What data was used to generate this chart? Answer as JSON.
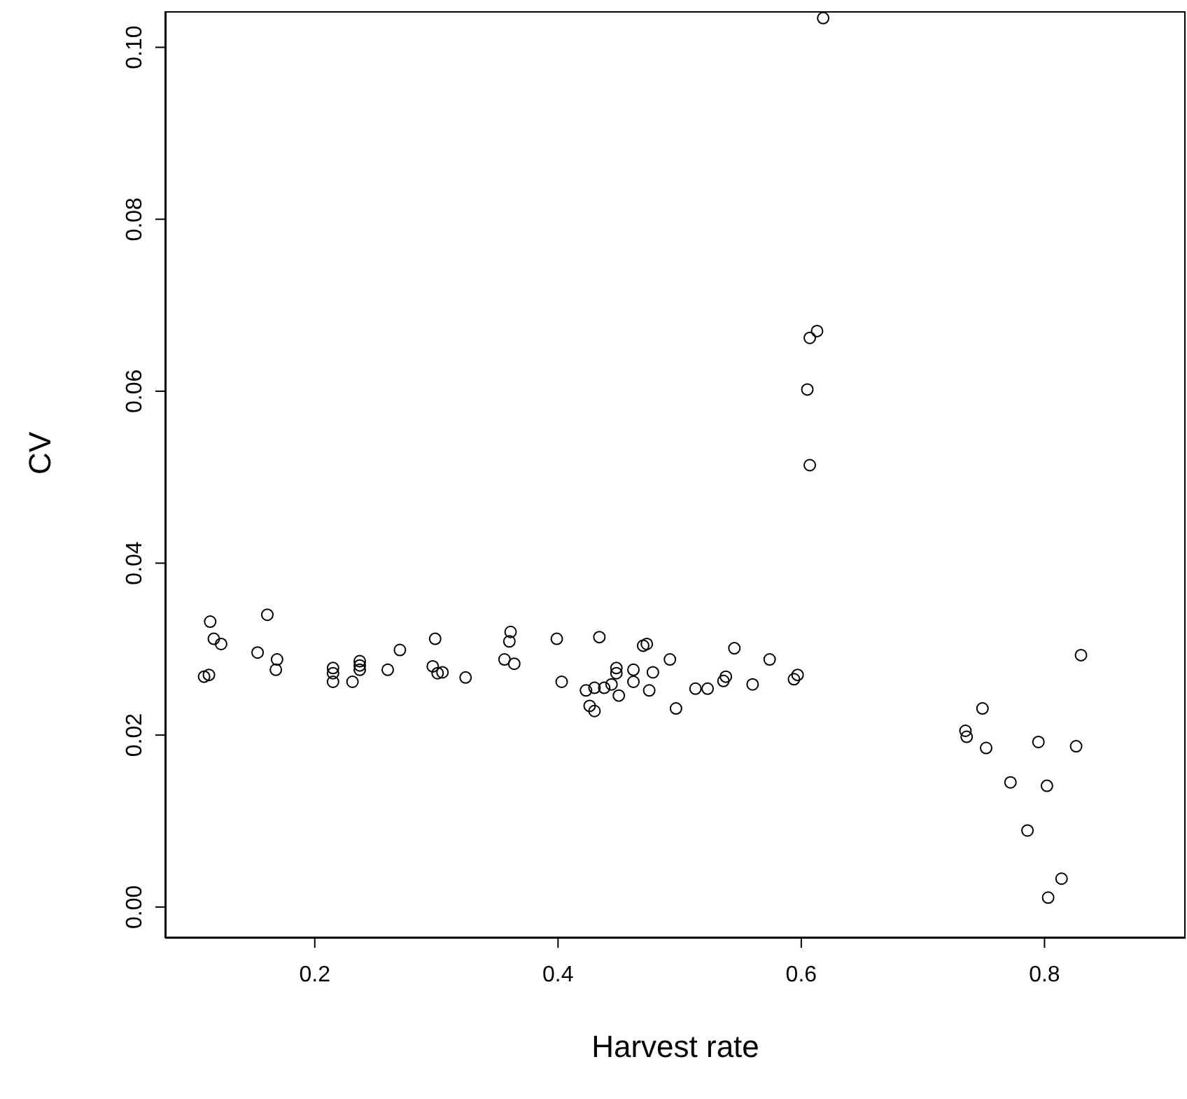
{
  "chart_data": {
    "type": "scatter",
    "xlabel": "Harvest rate",
    "ylabel": "CV",
    "marker": "circle",
    "grid": false,
    "legend": false,
    "xlim": [
      0.077,
      0.916
    ],
    "ylim": [
      -0.0036,
      0.1042
    ],
    "xticks": [
      {
        "value": 0.2,
        "label": "0.2"
      },
      {
        "value": 0.4,
        "label": "0.4"
      },
      {
        "value": 0.6,
        "label": "0.6"
      },
      {
        "value": 0.8,
        "label": "0.8"
      }
    ],
    "yticks": [
      {
        "value": 0,
        "label": "0.00"
      },
      {
        "value": 0.02,
        "label": "0.02"
      },
      {
        "value": 0.04,
        "label": "0.04"
      },
      {
        "value": 0.06,
        "label": "0.06"
      },
      {
        "value": 0.08,
        "label": "0.08"
      },
      {
        "value": 0.1,
        "label": "0.10"
      }
    ],
    "series": [
      {
        "color": "#000000",
        "x": [
          0.109,
          0.113,
          0.114,
          0.117,
          0.123,
          0.153,
          0.161,
          0.169,
          0.168,
          0.215,
          0.215,
          0.215,
          0.231,
          0.237,
          0.237,
          0.237,
          0.26,
          0.27,
          0.297,
          0.299,
          0.301,
          0.305,
          0.324,
          0.356,
          0.36,
          0.361,
          0.364,
          0.399,
          0.403,
          0.423,
          0.426,
          0.43,
          0.43,
          0.438,
          0.434,
          0.444,
          0.448,
          0.448,
          0.45,
          0.462,
          0.462,
          0.47,
          0.473,
          0.475,
          0.478,
          0.492,
          0.497,
          0.513,
          0.523,
          0.536,
          0.538,
          0.545,
          0.56,
          0.574,
          0.594,
          0.597,
          0.605,
          0.607,
          0.607,
          0.613,
          0.618,
          0.735,
          0.736,
          0.749,
          0.752,
          0.772,
          0.786,
          0.795,
          0.802,
          0.803,
          0.814,
          0.826,
          0.83
        ],
        "values": [
          0.0268,
          0.027,
          0.0332,
          0.0312,
          0.0306,
          0.0296,
          0.034,
          0.0288,
          0.0276,
          0.0278,
          0.0272,
          0.0262,
          0.0262,
          0.0281,
          0.0276,
          0.0286,
          0.0276,
          0.0299,
          0.028,
          0.0312,
          0.0272,
          0.0273,
          0.0267,
          0.0288,
          0.0309,
          0.032,
          0.0283,
          0.0312,
          0.0262,
          0.0252,
          0.0234,
          0.0228,
          0.0255,
          0.0255,
          0.0314,
          0.0259,
          0.0278,
          0.0272,
          0.0246,
          0.0276,
          0.0262,
          0.0304,
          0.0306,
          0.0252,
          0.0273,
          0.0288,
          0.0231,
          0.0254,
          0.0254,
          0.0263,
          0.0268,
          0.0301,
          0.0259,
          0.0288,
          0.0265,
          0.027,
          0.0602,
          0.0514,
          0.0662,
          0.067,
          0.1034,
          0.0205,
          0.0198,
          0.0231,
          0.0185,
          0.0145,
          0.0089,
          0.0192,
          0.0141,
          0.0011,
          0.0033,
          0.0187,
          0.0293
        ]
      }
    ]
  }
}
